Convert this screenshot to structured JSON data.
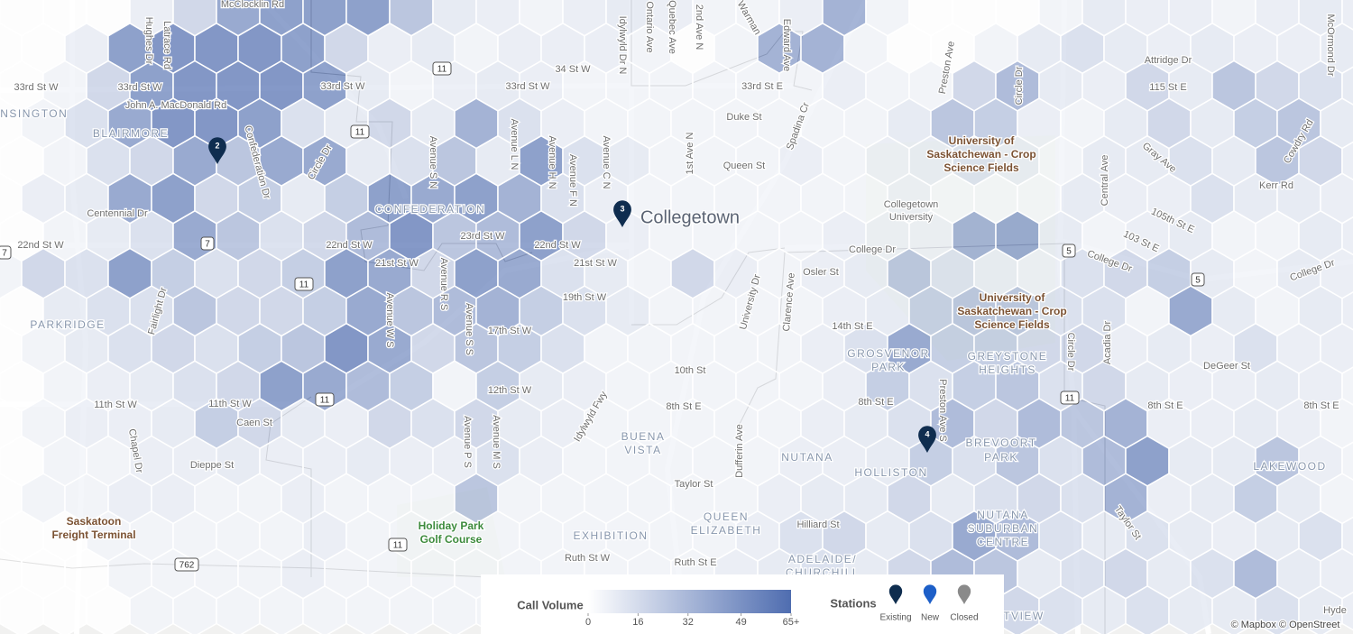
{
  "map": {
    "labels": [
      "McClocklin Rd",
      "Hughes Dr",
      "Latrace Rd",
      "33rd St W",
      "33rd St W",
      "33rd St W",
      "33rd St W",
      "33rd St E",
      "John A. MacDonald Rd",
      "ENSINGTON",
      "BLAIRMORE",
      "Confederation Dr",
      "Circle Dr",
      "Avenue S N",
      "Avenue L N",
      "Avenue H N",
      "Avenue F N",
      "Avenue C N",
      "Idylwyld Dr N",
      "Ontario Ave",
      "Quebec Ave",
      "2nd Ave N",
      "34 St W",
      "Duke St",
      "Queen St",
      "1st Ave N",
      "Spadina Cr",
      "Warman",
      "Edward Ave",
      "Centennial Dr",
      "CONFEDERATION",
      "Collegetown",
      "22nd St W",
      "22nd St W",
      "23rd St W",
      "22nd St W",
      "21st St W",
      "21st St W",
      "19th St W",
      "Avenue R S",
      "Avenue W S",
      "Avenue S S",
      "17th St W",
      "PARKRIDGE",
      "Fairlight Dr",
      "11th St W",
      "11th St W",
      "Caen St",
      "Chapel Dr",
      "Dieppe St",
      "12th St W",
      "10th St",
      "8th St E",
      "Idylwyld Fwy",
      "BUENA",
      "VISTA",
      "Avenue P S",
      "Avenue M S",
      "Dufferin Ave",
      "University Dr",
      "Clarence Ave",
      "College Dr",
      "Osler St",
      "14th St E",
      "GROSVENOR",
      "PARK",
      "8th St E",
      "Preston Ave S",
      "NUTANA",
      "HOLLISTON",
      "BREVOORT",
      "PARK",
      "Taylor St",
      "Hilliard St",
      "QUEEN",
      "ELIZABETH",
      "EXHIBITION",
      "Ruth St W",
      "Ruth St E",
      "ADELAIDE/",
      "CHURCHILL",
      "NUTANA",
      "SUBURBAN",
      "CENTRE",
      "GREYSTONE",
      "HEIGHTS",
      "University of",
      "Saskatchewan - Crop",
      "Science Fields",
      "University of",
      "Saskatchewan - Crop",
      "Science Fields",
      "Collegetown",
      "University",
      "Holiday Park",
      "Golf Course",
      "Saskatoon",
      "Freight Terminal",
      "Preston Ave",
      "Circle Dr",
      "115 St E",
      "Attridge Dr",
      "McOrmond Dr",
      "Gray Ave",
      "Cowdry Rd",
      "Kerr Rd",
      "Central Ave",
      "105th St E",
      "103 St E",
      "College Dr",
      "College Dr",
      "Circle Dr",
      "Acadia Dr",
      "DeGeer St",
      "8th St E",
      "8th St E",
      "LAKEWOOD",
      "Taylor St",
      "Hyde",
      "TVIEW",
      "© Mapbox © OpenStreet"
    ],
    "shields": [
      "11",
      "11",
      "11",
      "11",
      "11",
      "11",
      "5",
      "5",
      "7",
      "7",
      "762"
    ]
  },
  "hex_grid": {
    "values": [
      [
        0,
        0,
        0,
        8,
        20,
        45,
        50,
        50,
        50,
        30,
        10,
        8,
        5,
        8,
        10,
        8,
        5,
        5,
        8,
        40,
        5,
        0,
        0,
        0,
        5,
        10,
        8,
        8,
        5,
        8,
        10,
        8
      ],
      [
        0,
        0,
        8,
        50,
        55,
        55,
        55,
        50,
        20,
        8,
        10,
        5,
        8,
        8,
        8,
        5,
        0,
        5,
        40,
        40,
        5,
        0,
        0,
        5,
        10,
        15,
        10,
        8,
        10,
        8,
        8,
        10
      ],
      [
        0,
        5,
        20,
        50,
        55,
        55,
        55,
        50,
        10,
        5,
        8,
        10,
        8,
        5,
        5,
        5,
        5,
        5,
        5,
        8,
        5,
        5,
        20,
        35,
        10,
        8,
        20,
        10,
        30,
        20,
        15,
        10
      ],
      [
        0,
        5,
        15,
        45,
        55,
        55,
        50,
        15,
        10,
        20,
        10,
        40,
        15,
        8,
        5,
        5,
        5,
        5,
        5,
        5,
        5,
        10,
        30,
        25,
        8,
        5,
        10,
        20,
        10,
        25,
        30,
        10
      ],
      [
        0,
        5,
        15,
        20,
        45,
        30,
        45,
        45,
        10,
        15,
        30,
        10,
        50,
        15,
        10,
        5,
        5,
        5,
        8,
        5,
        8,
        10,
        15,
        10,
        5,
        10,
        10,
        15,
        10,
        30,
        20,
        8
      ],
      [
        0,
        8,
        10,
        45,
        50,
        20,
        25,
        10,
        25,
        50,
        45,
        50,
        40,
        15,
        8,
        5,
        5,
        5,
        5,
        5,
        5,
        8,
        5,
        5,
        5,
        10,
        8,
        8,
        15,
        10,
        10,
        8
      ],
      [
        0,
        5,
        10,
        15,
        45,
        30,
        15,
        20,
        35,
        55,
        30,
        35,
        50,
        20,
        8,
        5,
        5,
        5,
        5,
        8,
        8,
        8,
        40,
        45,
        10,
        5,
        8,
        10,
        5,
        5,
        10,
        8
      ],
      [
        5,
        20,
        15,
        50,
        25,
        15,
        20,
        25,
        50,
        45,
        20,
        50,
        45,
        15,
        10,
        5,
        20,
        8,
        5,
        8,
        10,
        30,
        15,
        10,
        8,
        15,
        20,
        25,
        10,
        5,
        10,
        8
      ],
      [
        0,
        10,
        15,
        15,
        30,
        20,
        20,
        25,
        45,
        30,
        35,
        40,
        25,
        15,
        10,
        5,
        5,
        5,
        5,
        8,
        10,
        25,
        30,
        30,
        15,
        15,
        5,
        45,
        10,
        5,
        10,
        8
      ],
      [
        0,
        5,
        10,
        15,
        20,
        15,
        25,
        30,
        55,
        45,
        20,
        30,
        25,
        15,
        5,
        5,
        5,
        5,
        5,
        8,
        15,
        45,
        25,
        25,
        20,
        20,
        8,
        10,
        8,
        15,
        8,
        8
      ],
      [
        0,
        5,
        8,
        10,
        15,
        20,
        50,
        45,
        35,
        25,
        5,
        25,
        10,
        8,
        5,
        5,
        5,
        5,
        5,
        8,
        25,
        15,
        25,
        30,
        15,
        20,
        10,
        8,
        8,
        10,
        8,
        5
      ],
      [
        0,
        5,
        8,
        8,
        10,
        25,
        20,
        10,
        8,
        20,
        15,
        20,
        10,
        8,
        5,
        5,
        5,
        5,
        5,
        8,
        10,
        15,
        35,
        20,
        35,
        30,
        40,
        8,
        8,
        10,
        8,
        5
      ],
      [
        0,
        5,
        5,
        8,
        8,
        10,
        8,
        8,
        10,
        8,
        8,
        15,
        8,
        5,
        5,
        5,
        5,
        5,
        8,
        8,
        10,
        25,
        15,
        30,
        15,
        35,
        50,
        10,
        10,
        30,
        8,
        5
      ],
      [
        0,
        5,
        5,
        8,
        8,
        5,
        5,
        8,
        5,
        5,
        5,
        30,
        5,
        5,
        5,
        5,
        5,
        5,
        8,
        10,
        10,
        20,
        10,
        15,
        20,
        15,
        40,
        8,
        10,
        25,
        10,
        5
      ],
      [
        0,
        0,
        5,
        5,
        5,
        5,
        5,
        8,
        5,
        5,
        5,
        5,
        5,
        5,
        5,
        5,
        5,
        8,
        15,
        20,
        10,
        15,
        45,
        35,
        15,
        10,
        15,
        10,
        8,
        10,
        15,
        8
      ],
      [
        0,
        0,
        0,
        5,
        5,
        5,
        5,
        8,
        5,
        5,
        5,
        5,
        5,
        5,
        5,
        5,
        5,
        8,
        10,
        15,
        10,
        20,
        35,
        30,
        10,
        15,
        20,
        10,
        15,
        35,
        10,
        8
      ],
      [
        0,
        0,
        0,
        5,
        5,
        5,
        5,
        5,
        5,
        5,
        5,
        5,
        5,
        5,
        5,
        5,
        5,
        5,
        10,
        10,
        10,
        10,
        20,
        20,
        15,
        10,
        15,
        10,
        10,
        15,
        10,
        8
      ]
    ]
  },
  "stations": {
    "markers": [
      {
        "label": "2",
        "type": 0
      },
      {
        "label": "3",
        "type": 0
      },
      {
        "label": "4",
        "type": 0
      }
    ]
  },
  "legend": {
    "title": "Call Volume",
    "colors": [
      "#ffffff",
      "#4f6db0"
    ],
    "ticks": [
      0,
      16,
      32,
      49,
      {
        "value": 65,
        "label": "65+"
      }
    ],
    "stations_title": "Stations",
    "types": [
      {
        "name": "Existing",
        "color": "#0f2d4f"
      },
      {
        "name": "New",
        "color": "#1d5fc8"
      },
      {
        "name": "Closed",
        "color": "#8a8a8a"
      }
    ]
  }
}
